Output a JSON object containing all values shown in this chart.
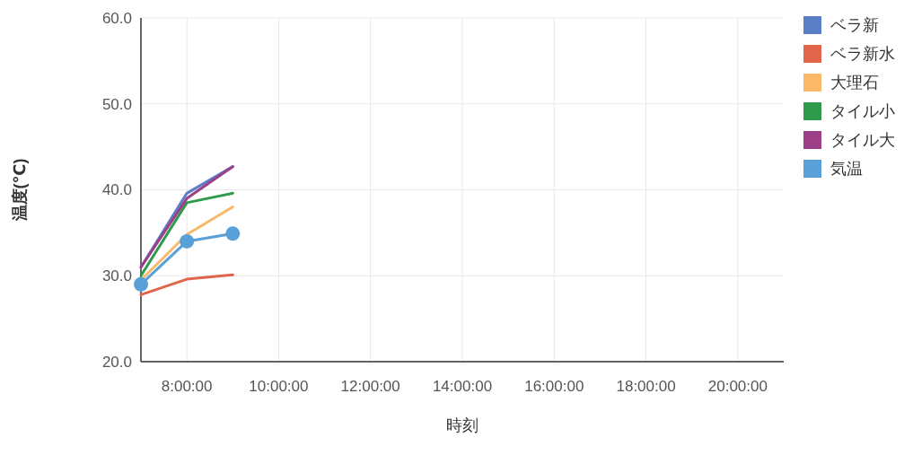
{
  "chart_data": {
    "type": "line",
    "xlabel": "時刻",
    "ylabel": "温度(℃)",
    "x": [
      7,
      8,
      9
    ],
    "xlim": [
      7,
      21
    ],
    "xticks": [
      {
        "value": 8,
        "label": "8:00:00"
      },
      {
        "value": 10,
        "label": "10:00:00"
      },
      {
        "value": 12,
        "label": "12:00:00"
      },
      {
        "value": 14,
        "label": "14:00:00"
      },
      {
        "value": 16,
        "label": "16:00:00"
      },
      {
        "value": 18,
        "label": "18:00:00"
      },
      {
        "value": 20,
        "label": "20:00:00"
      }
    ],
    "ylim": [
      20,
      60
    ],
    "yticks": [
      {
        "value": 20,
        "label": "20.0"
      },
      {
        "value": 30,
        "label": "30.0"
      },
      {
        "value": 40,
        "label": "40.0"
      },
      {
        "value": 50,
        "label": "50.0"
      },
      {
        "value": 60,
        "label": "60.0"
      }
    ],
    "grid": true,
    "legend": "right",
    "series": [
      {
        "name": "ベラ新",
        "color": "#5b7fc7",
        "values": [
          31,
          39.6,
          42.7
        ]
      },
      {
        "name": "ベラ新水",
        "color": "#e0654a",
        "values": [
          27.8,
          29.6,
          30.1
        ]
      },
      {
        "name": "大理石",
        "color": "#f9b968",
        "values": [
          29.5,
          34.8,
          38
        ]
      },
      {
        "name": "タイル小",
        "color": "#2f9b4a",
        "values": [
          30,
          38.5,
          39.6
        ]
      },
      {
        "name": "タイル大",
        "color": "#9c3f87",
        "values": [
          31,
          39,
          42.7
        ]
      },
      {
        "name": "気温",
        "color": "#5aa0d8",
        "values": [
          29,
          34,
          34.9
        ],
        "marker": "circle"
      }
    ]
  }
}
